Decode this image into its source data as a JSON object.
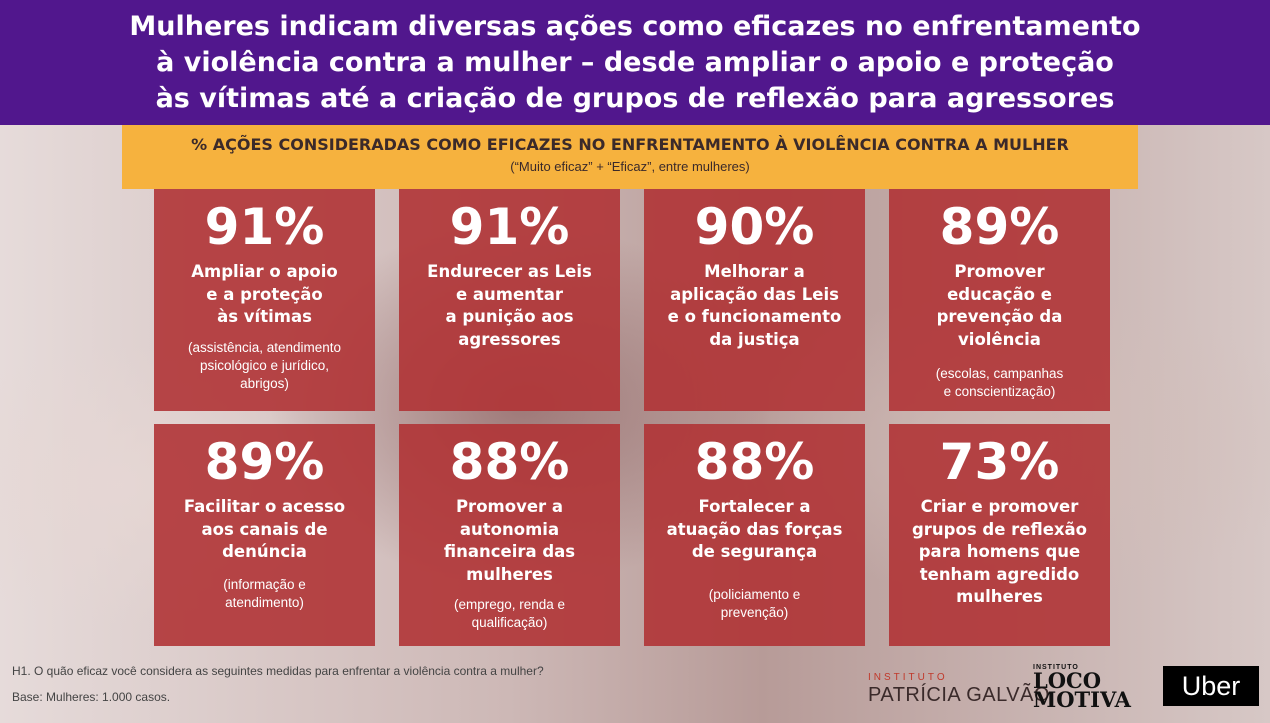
{
  "header": {
    "lines": [
      "Mulheres indicam diversas ações como eficazes no enfrentamento",
      "à violência contra a mulher – desde ampliar o apoio e proteção",
      "às vítimas até a criação de grupos de reflexão para agressores"
    ]
  },
  "banner": {
    "title": "% AÇÕES CONSIDERADAS COMO EFICAZES NO ENFRENTAMENTO À VIOLÊNCIA CONTRA A MULHER",
    "subtitle": "(“Muito eficaz” + “Eficaz”, entre mulheres)"
  },
  "cards": [
    {
      "pct": "91%",
      "label": "Ampliar o apoio\ne a proteção\nàs  vítimas",
      "note": "(assistência, atendimento\npsicológico e jurídico,\nabrigos)"
    },
    {
      "pct": "91%",
      "label": "Endurecer as Leis\ne aumentar\na punição aos\nagressores",
      "note": ""
    },
    {
      "pct": "90%",
      "label": "Melhorar a\naplicação das Leis\ne o funcionamento\nda justiça",
      "note": ""
    },
    {
      "pct": "89%",
      "label": "Promover\neducação e\nprevenção da\nviolência",
      "note": "(escolas, campanhas\ne conscientização)"
    },
    {
      "pct": "89%",
      "label": "Facilitar o acesso\naos canais de\ndenúncia",
      "note": "(informação e\natendimento)"
    },
    {
      "pct": "88%",
      "label": "Promover a\nautonomia\nfinanceira das\nmulheres",
      "note": "(emprego, renda e\nqualificação)"
    },
    {
      "pct": "88%",
      "label": "Fortalecer a\natuação das forças\nde segurança",
      "note": "(policiamento e\nprevenção)"
    },
    {
      "pct": "73%",
      "label": "Criar e promover\ngrupos de reflexão\npara homens que\ntenham agredido\nmulheres",
      "note": ""
    }
  ],
  "footer": {
    "question": "H1. O quão eficaz você considera as seguintes medidas para enfrentar a violência contra a mulher?",
    "base": "Base: Mulheres: 1.000 casos."
  },
  "logos": {
    "pg_top": "INSTITUTO",
    "pg_main": "PATRÍCIA GALVÃO",
    "lm_top": "INSTITUTO",
    "lm_line1": "LOCO",
    "lm_line2": "MOTIVA",
    "uber": "Uber"
  },
  "colors": {
    "header_bg": "#51178d",
    "banner_bg": "#f6b23e",
    "card_bg": "#b03436"
  }
}
